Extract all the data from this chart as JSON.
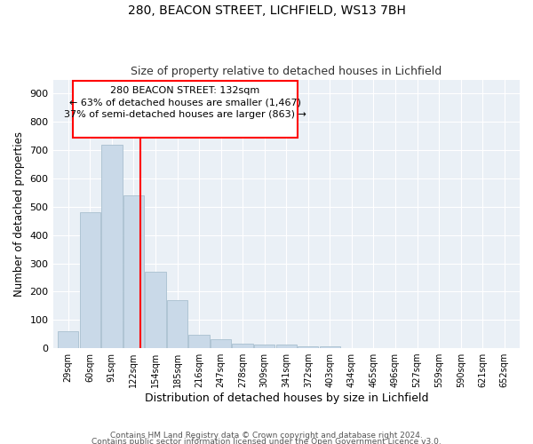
{
  "title1": "280, BEACON STREET, LICHFIELD, WS13 7BH",
  "title2": "Size of property relative to detached houses in Lichfield",
  "xlabel": "Distribution of detached houses by size in Lichfield",
  "ylabel": "Number of detached properties",
  "bin_labels": [
    "29sqm",
    "60sqm",
    "91sqm",
    "122sqm",
    "154sqm",
    "185sqm",
    "216sqm",
    "247sqm",
    "278sqm",
    "309sqm",
    "341sqm",
    "372sqm",
    "403sqm",
    "434sqm",
    "465sqm",
    "496sqm",
    "527sqm",
    "559sqm",
    "590sqm",
    "621sqm",
    "652sqm"
  ],
  "bar_heights": [
    60,
    480,
    720,
    540,
    270,
    170,
    47,
    32,
    15,
    12,
    12,
    8,
    7,
    0,
    0,
    0,
    0,
    0,
    0,
    0,
    0
  ],
  "bar_color": "#c9d9e8",
  "bar_edgecolor": "#a8bfcf",
  "ylim": [
    0,
    950
  ],
  "yticks": [
    0,
    100,
    200,
    300,
    400,
    500,
    600,
    700,
    800,
    900
  ],
  "annotation_title": "280 BEACON STREET: 132sqm",
  "annotation_line1": "← 63% of detached houses are smaller (1,467)",
  "annotation_line2": "37% of semi-detached houses are larger (863) →",
  "footer1": "Contains HM Land Registry data © Crown copyright and database right 2024.",
  "footer2": "Contains public sector information licensed under the Open Government Licence v3.0.",
  "bg_color": "#eaf0f6"
}
